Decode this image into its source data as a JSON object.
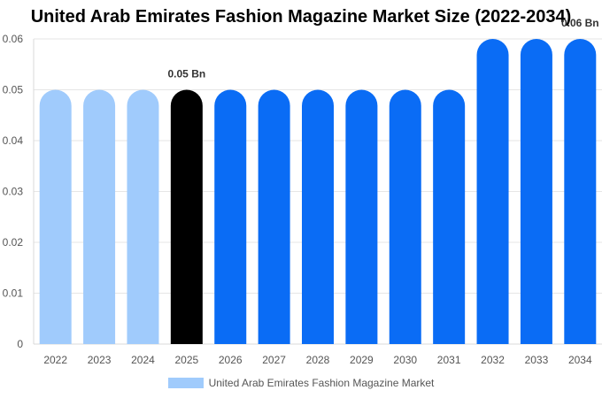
{
  "chart_data": {
    "type": "bar",
    "title": "United Arab Emirates Fashion Magazine Market Size (2022-2034)",
    "categories": [
      "2022",
      "2023",
      "2024",
      "2025",
      "2026",
      "2027",
      "2028",
      "2029",
      "2030",
      "2031",
      "2032",
      "2033",
      "2034"
    ],
    "series": [
      {
        "name": "United Arab Emirates Fashion Magazine Market",
        "values": [
          0.05,
          0.05,
          0.05,
          0.05,
          0.05,
          0.05,
          0.05,
          0.05,
          0.05,
          0.05,
          0.06,
          0.06,
          0.06
        ]
      }
    ],
    "bar_colors": [
      "#a0cbfc",
      "#a0cbfc",
      "#a0cbfc",
      "#000000",
      "#0a6cf5",
      "#0a6cf5",
      "#0a6cf5",
      "#0a6cf5",
      "#0a6cf5",
      "#0a6cf5",
      "#0a6cf5",
      "#0a6cf5",
      "#0a6cf5"
    ],
    "legend_color": "#a0cbfc",
    "data_labels": [
      {
        "index": 3,
        "text": "0.05 Bn"
      },
      {
        "index": 12,
        "text": "0.06 Bn"
      }
    ],
    "y_ticks": [
      "0",
      "0.01",
      "0.02",
      "0.03",
      "0.04",
      "0.05",
      "0.06"
    ],
    "ylim": [
      0,
      0.06
    ],
    "xlabel": "",
    "ylabel": "",
    "grid": "horizontal",
    "legend_position": "bottom"
  }
}
